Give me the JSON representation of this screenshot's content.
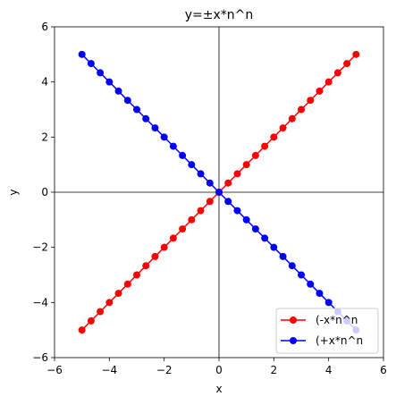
{
  "chart_data": {
    "type": "line",
    "title": "y=±x*n^n",
    "xlabel": "x",
    "ylabel": "y",
    "xlim": [
      -6,
      6
    ],
    "ylim": [
      -6,
      6
    ],
    "xticks": [
      -6,
      -4,
      -2,
      0,
      2,
      4,
      6
    ],
    "yticks": [
      -6,
      -4,
      -2,
      0,
      2,
      4,
      6
    ],
    "xtick_labels": [
      "−6",
      "−4",
      "−2",
      "0",
      "2",
      "4",
      "6"
    ],
    "ytick_labels": [
      "−6",
      "−4",
      "−2",
      "0",
      "2",
      "4",
      "6"
    ],
    "reference_lines": {
      "x": 0,
      "y": 0
    },
    "legend_position": "lower right",
    "x": [
      -5.0,
      -4.667,
      -4.333,
      -4.0,
      -3.667,
      -3.333,
      -3.0,
      -2.667,
      -2.333,
      -2.0,
      -1.667,
      -1.333,
      -1.0,
      -0.667,
      -0.333,
      0.0,
      0.333,
      0.667,
      1.0,
      1.333,
      1.667,
      2.0,
      2.333,
      2.667,
      3.0,
      3.333,
      3.667,
      4.0,
      4.333,
      4.667,
      5.0
    ],
    "series": [
      {
        "name": "(-x*n^n",
        "color": "#ff0000",
        "marker": "circle",
        "y": [
          -5.0,
          -4.667,
          -4.333,
          -4.0,
          -3.667,
          -3.333,
          -3.0,
          -2.667,
          -2.333,
          -2.0,
          -1.667,
          -1.333,
          -1.0,
          -0.667,
          -0.333,
          0.0,
          0.333,
          0.667,
          1.0,
          1.333,
          1.667,
          2.0,
          2.333,
          2.667,
          3.0,
          3.333,
          3.667,
          4.0,
          4.333,
          4.667,
          5.0
        ]
      },
      {
        "name": "(+x*n^n",
        "color": "#0000ff",
        "marker": "circle",
        "y": [
          5.0,
          4.667,
          4.333,
          4.0,
          3.667,
          3.333,
          3.0,
          2.667,
          2.333,
          2.0,
          1.667,
          1.333,
          1.0,
          0.667,
          0.333,
          0.0,
          -0.333,
          -0.667,
          -1.0,
          -1.333,
          -1.667,
          -2.0,
          -2.333,
          -2.667,
          -3.0,
          -3.333,
          -3.667,
          -4.0,
          -4.333,
          -4.667,
          -5.0
        ]
      }
    ]
  }
}
